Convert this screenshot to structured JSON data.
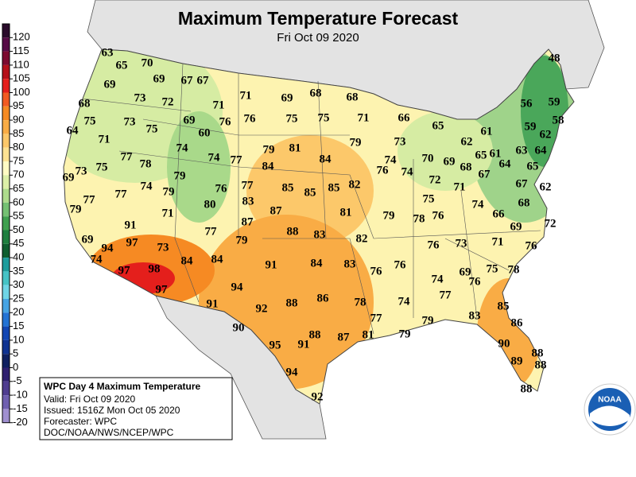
{
  "title": "Maximum Temperature Forecast",
  "subtitle": "Fri Oct 09 2020",
  "legend": {
    "ticks": [
      120,
      115,
      110,
      105,
      100,
      95,
      90,
      85,
      80,
      75,
      70,
      65,
      60,
      55,
      50,
      45,
      40,
      35,
      30,
      25,
      20,
      15,
      10,
      5,
      0,
      -5,
      -10,
      -15,
      -20
    ],
    "colors": [
      "#2a0b2b",
      "#560a45",
      "#7c0a2f",
      "#b5101a",
      "#e41f1c",
      "#f25b22",
      "#f68a23",
      "#f9ac45",
      "#fcc86a",
      "#fde293",
      "#fffbc4",
      "#dcefa8",
      "#addb8c",
      "#75c173",
      "#3fa04f",
      "#1f7f3f",
      "#0f5e2f",
      "#1e9c9c",
      "#46c3c6",
      "#6fd5e6",
      "#46a4e3",
      "#2373d4",
      "#1246b3",
      "#0f3291",
      "#0f2060",
      "#2f2070",
      "#4f3d90",
      "#6f5fb0",
      "#a090d0"
    ]
  },
  "labels": [
    63,
    65,
    70,
    69,
    67,
    67,
    69,
    73,
    72,
    71,
    71,
    69,
    68,
    68,
    68,
    75,
    73,
    75,
    69,
    60,
    76,
    76,
    75,
    75,
    71,
    66,
    65,
    64,
    71,
    74,
    79,
    81,
    79,
    73,
    62,
    61,
    59,
    58,
    62,
    56,
    59,
    48,
    77,
    78,
    74,
    77,
    84,
    74,
    70,
    69,
    68,
    65,
    61,
    63,
    64,
    64,
    65,
    84,
    76,
    74,
    72,
    67,
    69,
    73,
    75,
    79,
    77,
    76,
    85,
    85,
    85,
    82,
    71,
    67,
    62,
    77,
    77,
    74,
    79,
    80,
    83,
    75,
    76,
    74,
    66,
    68,
    79,
    71,
    87,
    81,
    79,
    78,
    87,
    91,
    69,
    94,
    97,
    73,
    77,
    79,
    88,
    83,
    82,
    76,
    73,
    71,
    69,
    72,
    76,
    74,
    98,
    84,
    84,
    91,
    84,
    83,
    76,
    76,
    69,
    75,
    78,
    97,
    76,
    74,
    97,
    94,
    88,
    86,
    78,
    74,
    77,
    85,
    91,
    92,
    77,
    79,
    83,
    86,
    90,
    79,
    95,
    91,
    88,
    87,
    81,
    90,
    88,
    89,
    88,
    94,
    88,
    92
  ],
  "info": {
    "title": "WPC Day 4 Maximum Temperature",
    "lines": [
      "Valid: Fri Oct 09 2020",
      "Issued: 1516Z Mon Oct 05 2020",
      "Forecaster: WPC",
      "DOC/NOAA/NWS/NCEP/WPC"
    ]
  },
  "logo": "NOAA"
}
